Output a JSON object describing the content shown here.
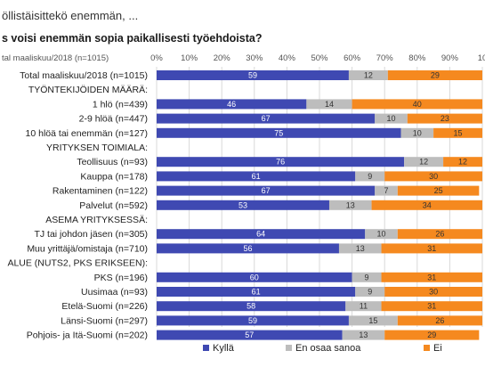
{
  "question": "öllistäisittekö enemmän, ...",
  "chart_data": {
    "type": "bar",
    "orientation": "horizontal",
    "stacked": true,
    "title": "s voisi enemmän sopia paikallisesti työehdoista?",
    "axis_caption": "tal maaliskuu/2018 (n=1015)",
    "xlim": [
      0,
      100
    ],
    "x_ticks": [
      "0%",
      "10%",
      "20%",
      "30%",
      "40%",
      "50%",
      "60%",
      "70%",
      "80%",
      "90%",
      "10"
    ],
    "grid": true,
    "legend_position": "bottom",
    "colors": {
      "kylla": "#3f49b2",
      "en_osaa": "#bdbdbd",
      "ei": "#f5891f"
    },
    "series": [
      {
        "key": "kylla",
        "name": "Kyllä"
      },
      {
        "key": "en_osaa",
        "name": "En osaa sanoa"
      },
      {
        "key": "ei",
        "name": "Ei"
      }
    ],
    "rows": [
      {
        "label": "Total maaliskuu/2018 (n=1015)",
        "values": [
          59,
          12,
          29
        ]
      },
      {
        "label": "TYÖNTEKIJÖIDEN MÄÄRÄ:",
        "header": true
      },
      {
        "label": "1 hlö (n=439)",
        "values": [
          46,
          14,
          40
        ]
      },
      {
        "label": "2-9 hlöä (n=447)",
        "values": [
          67,
          10,
          23
        ]
      },
      {
        "label": "10 hlöä tai enemmän (n=127)",
        "values": [
          75,
          10,
          15
        ]
      },
      {
        "label": "YRITYKSEN TOIMIALA:",
        "header": true
      },
      {
        "label": "Teollisuus (n=93)",
        "values": [
          76,
          12,
          12
        ]
      },
      {
        "label": "Kauppa (n=178)",
        "values": [
          61,
          9,
          30
        ]
      },
      {
        "label": "Rakentaminen (n=122)",
        "values": [
          67,
          7,
          25
        ]
      },
      {
        "label": "Palvelut (n=592)",
        "values": [
          53,
          13,
          34
        ]
      },
      {
        "label": "ASEMA YRITYKSESSÄ:",
        "header": true
      },
      {
        "label": "TJ tai johdon jäsen (n=305)",
        "values": [
          64,
          10,
          26
        ]
      },
      {
        "label": "Muu yrittäjä/omistaja (n=710)",
        "values": [
          56,
          13,
          31
        ]
      },
      {
        "label": "ALUE (NUTS2, PKS ERIKSEEN):",
        "header": true
      },
      {
        "label": "PKS (n=196)",
        "values": [
          60,
          9,
          31
        ]
      },
      {
        "label": "Uusimaa (n=93)",
        "values": [
          61,
          9,
          30
        ]
      },
      {
        "label": "Etelä-Suomi (n=226)",
        "values": [
          58,
          11,
          31
        ]
      },
      {
        "label": "Länsi-Suomi (n=297)",
        "values": [
          59,
          15,
          26
        ]
      },
      {
        "label": "Pohjois- ja Itä-Suomi (n=202)",
        "values": [
          57,
          13,
          29
        ]
      }
    ]
  }
}
